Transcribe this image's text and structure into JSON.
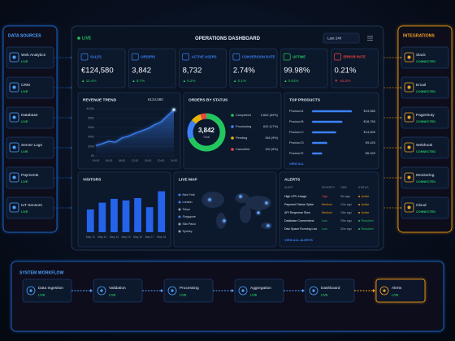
{
  "data_sources": {
    "title": "DATA SOURCES",
    "items": [
      {
        "name": "Web Analytics",
        "status": "LIVE"
      },
      {
        "name": "CRM",
        "status": "LIVE"
      },
      {
        "name": "Database",
        "status": "LIVE"
      },
      {
        "name": "Server Logs",
        "status": "LIVE"
      },
      {
        "name": "Payments",
        "status": "LIVE"
      },
      {
        "name": "IoT Sensors",
        "status": "LIVE"
      }
    ]
  },
  "integrations": {
    "title": "INTEGRATIONS",
    "items": [
      {
        "name": "Slack",
        "status": "CONNECTED"
      },
      {
        "name": "Email",
        "status": "CONNECTED"
      },
      {
        "name": "PagerDuty",
        "status": "CONNECTED"
      },
      {
        "name": "Webhook",
        "status": "CONNECTED"
      },
      {
        "name": "Monitoring",
        "status": "CONNECTED"
      },
      {
        "name": "Cloud",
        "status": "CONNECTED"
      }
    ]
  },
  "header": {
    "status": "LIVE",
    "title": "OPERATIONS DASHBOARD",
    "range": "Last 24h"
  },
  "kpis": [
    {
      "label": "SALES",
      "value": "€124,580",
      "change": "▲ 12.4%",
      "color": "#3b82f6",
      "change_color": "#22c55e"
    },
    {
      "label": "ORDERS",
      "value": "3,842",
      "change": "▲ 8.7%",
      "color": "#3b82f6",
      "change_color": "#22c55e"
    },
    {
      "label": "ACTIVE USERS",
      "value": "8,732",
      "change": "▲ 6.2%",
      "color": "#3b82f6",
      "change_color": "#22c55e"
    },
    {
      "label": "CONVERSION RATE",
      "value": "2.74%",
      "change": "▲ 0.1%",
      "color": "#3b82f6",
      "change_color": "#22c55e"
    },
    {
      "label": "UPTIME",
      "value": "99.98%",
      "change": "▲ 0.02%",
      "color": "#22c55e",
      "change_color": "#22c55e"
    },
    {
      "label": "ERROR RATE",
      "value": "0.21%",
      "change": "▼ -15.2%",
      "color": "#ef4444",
      "change_color": "#ef4444"
    }
  ],
  "revenue_trend": {
    "type": "line",
    "title": "REVENUE TREND",
    "total": "€124,580",
    "x": [
      0,
      2,
      4,
      6,
      8,
      10,
      12,
      14,
      16,
      18,
      20,
      22,
      24
    ],
    "values": [
      22000,
      26000,
      31000,
      29000,
      38000,
      42000,
      48000,
      53000,
      58000,
      66000,
      72000,
      85000,
      98000
    ],
    "color": "#3b82f6",
    "xlim": [
      0,
      24
    ],
    "xticks": [
      {
        "value": 0,
        "label": "00:00"
      },
      {
        "value": 4,
        "label": "04:00"
      },
      {
        "value": 8,
        "label": "08:00"
      },
      {
        "value": 12,
        "label": "12:00"
      },
      {
        "value": 16,
        "label": "16:00"
      },
      {
        "value": 20,
        "label": "20:00"
      },
      {
        "value": 24,
        "label": "24:00"
      }
    ],
    "ylim": [
      0,
      100000
    ],
    "yticks": [
      {
        "value": 0,
        "label": "€0"
      },
      {
        "value": 20000,
        "label": "€20k"
      },
      {
        "value": 40000,
        "label": "€40k"
      },
      {
        "value": 60000,
        "label": "€60k"
      },
      {
        "value": 80000,
        "label": "€80k"
      },
      {
        "value": 100000,
        "label": "€100k"
      }
    ],
    "grid": true
  },
  "orders_by_status": {
    "type": "pie",
    "title": "ORDERS BY STATUS",
    "total": "3,842",
    "total_label": "Total",
    "categories": [
      "Completed",
      "Processing",
      "Pending",
      "Cancelled"
    ],
    "values": [
      2662,
      642,
      346,
      192
    ],
    "value_labels": [
      "2,662 (69%)",
      "642 (17%)",
      "346 (9%)",
      "192 (5%)"
    ],
    "colors": [
      "#22c55e",
      "#3b82f6",
      "#eab308",
      "#ef4444"
    ]
  },
  "top_products": {
    "type": "bar",
    "title": "TOP PRODUCTS",
    "categories": [
      "Product A",
      "Product B",
      "Product C",
      "Product D",
      "Product E"
    ],
    "values": [
      24580,
      18750,
      14890,
      9420,
      6320
    ],
    "value_labels": [
      "€24,580",
      "€18,750",
      "€14,890",
      "€9,420",
      "€6,320"
    ],
    "color": "#3b82f6",
    "xlim": [
      0,
      26000
    ],
    "link": "VIEW ALL"
  },
  "visitors": {
    "type": "bar",
    "title": "VISITORS",
    "categories": [
      "May 12",
      "May 13",
      "May 14",
      "May 15",
      "May 16",
      "May 17",
      "May 18"
    ],
    "values": [
      3000,
      3900,
      4400,
      4200,
      4500,
      3300,
      5400
    ],
    "color": "#2563eb",
    "ylim": [
      0,
      6000
    ]
  },
  "live_map": {
    "title": "LIVE MAP",
    "cities": [
      {
        "name": "New York",
        "color": "#3b82f6"
      },
      {
        "name": "London",
        "color": "#3b82f6"
      },
      {
        "name": "Tokyo",
        "color": "#94a3b8"
      },
      {
        "name": "Singapore",
        "color": "#3b82f6"
      },
      {
        "name": "São Paulo",
        "color": "#94a3b8"
      },
      {
        "name": "Sydney",
        "color": "#94a3b8"
      }
    ]
  },
  "alerts": {
    "title": "ALERTS",
    "columns": [
      "ALERT",
      "SEVERITY",
      "TIME",
      "STATUS"
    ],
    "rows": [
      {
        "alert": "High CPU Usage",
        "severity": "High",
        "time": "5m ago",
        "status": "Active",
        "severity_color": "#ef4444",
        "status_color": "#f59e0b"
      },
      {
        "alert": "Payment Failure Spike",
        "severity": "Medium",
        "time": "12m ago",
        "status": "Active",
        "severity_color": "#f59e0b",
        "status_color": "#f59e0b"
      },
      {
        "alert": "API Response Slow",
        "severity": "Medium",
        "time": "18m ago",
        "status": "Active",
        "severity_color": "#f59e0b",
        "status_color": "#f59e0b"
      },
      {
        "alert": "Database Connections",
        "severity": "Low",
        "time": "25m ago",
        "status": "Resolved",
        "severity_color": "#22c55e",
        "status_color": "#22c55e"
      },
      {
        "alert": "Disk Space Running Low",
        "severity": "Low",
        "time": "32m ago",
        "status": "Resolved",
        "severity_color": "#22c55e",
        "status_color": "#22c55e"
      }
    ],
    "link": "VIEW ALL ALERTS"
  },
  "workflow": {
    "title": "SYSTEM WORKFLOW",
    "steps": [
      {
        "name": "Data Ingestion",
        "status": "LIVE"
      },
      {
        "name": "Validation",
        "status": "LIVE"
      },
      {
        "name": "Processing",
        "status": "LIVE"
      },
      {
        "name": "Aggregation",
        "status": "LIVE"
      },
      {
        "name": "Dashboard",
        "status": "LIVE"
      },
      {
        "name": "Alerts",
        "status": "LIVE"
      }
    ]
  }
}
